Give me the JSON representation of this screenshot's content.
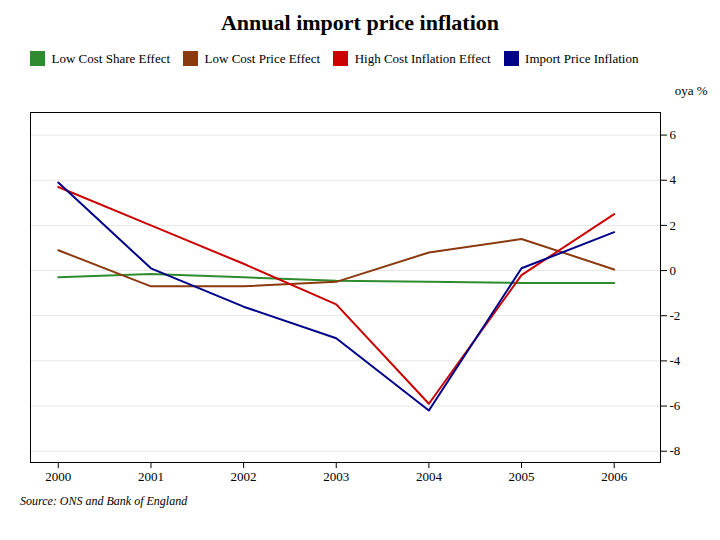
{
  "chart_data": {
    "type": "line",
    "title": "Annual import price inflation",
    "y_label": "oya %",
    "annotations": [
      "Source: ONS and Bank of England"
    ],
    "x": [
      2000,
      2001,
      2002,
      2003,
      2004,
      2005,
      2006
    ],
    "series": [
      {
        "name": "Low Cost Share Effect",
        "color": "#2e8b2e",
        "values": [
          -0.3,
          -0.15,
          -0.3,
          -0.45,
          -0.5,
          -0.55,
          -0.55
        ]
      },
      {
        "name": "Low Cost Price Effect",
        "color": "#8b3a0f",
        "values": [
          0.9,
          -0.7,
          -0.7,
          -0.5,
          0.8,
          1.4,
          0.05
        ]
      },
      {
        "name": "High Cost Inflation Effect",
        "color": "#cc0000",
        "values": [
          3.7,
          2.0,
          0.3,
          -1.5,
          -5.9,
          -0.2,
          2.5
        ]
      },
      {
        "name": "Import Price Inflation",
        "color": "#00008b",
        "values": [
          3.9,
          0.1,
          -1.6,
          -3.0,
          -6.2,
          0.1,
          1.7
        ]
      }
    ],
    "xlim": [
      1999.7,
      2006.5
    ],
    "xticks": [
      2000,
      2001,
      2002,
      2003,
      2004,
      2005,
      2006
    ],
    "ylim": [
      -8.5,
      7.0
    ],
    "yticks": [
      -8,
      -6,
      -4,
      -2,
      0,
      2,
      4,
      6
    ],
    "grid": "y",
    "legend": "upper left"
  }
}
